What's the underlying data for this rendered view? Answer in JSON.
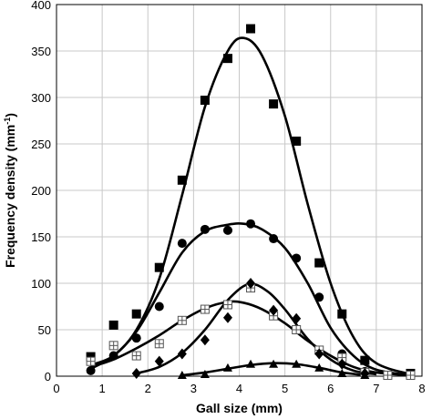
{
  "chart_data": {
    "type": "scatter",
    "xlabel": "Gall size (mm)",
    "ylabel": "Frequency density (mm",
    "ylabel_sup": "-1",
    "ylabel_close": ")",
    "xlim": [
      0,
      8
    ],
    "ylim": [
      0,
      400
    ],
    "x_ticks": [
      0,
      1,
      2,
      3,
      4,
      5,
      6,
      7,
      8
    ],
    "y_ticks": [
      0,
      50,
      100,
      150,
      200,
      250,
      300,
      350,
      400
    ],
    "grid": true,
    "legend": "none",
    "series": [
      {
        "marker": "square-filled",
        "points": [
          [
            0.75,
            21
          ],
          [
            1.25,
            55
          ],
          [
            1.75,
            67
          ],
          [
            2.25,
            117
          ],
          [
            2.75,
            211
          ],
          [
            3.25,
            297
          ],
          [
            3.75,
            342
          ],
          [
            4.25,
            374
          ],
          [
            4.75,
            293
          ],
          [
            5.25,
            253
          ],
          [
            5.75,
            122
          ],
          [
            6.25,
            67
          ],
          [
            6.75,
            17
          ],
          [
            7.75,
            3
          ]
        ],
        "fit": [
          [
            0.75,
            12
          ],
          [
            1.25,
            22
          ],
          [
            1.75,
            50
          ],
          [
            2.25,
            105
          ],
          [
            2.75,
            195
          ],
          [
            3.25,
            290
          ],
          [
            3.75,
            350
          ],
          [
            4.1,
            364
          ],
          [
            4.5,
            345
          ],
          [
            5.0,
            280
          ],
          [
            5.5,
            185
          ],
          [
            6.0,
            100
          ],
          [
            6.5,
            42
          ],
          [
            7.0,
            14
          ],
          [
            7.75,
            2
          ]
        ]
      },
      {
        "marker": "circle-filled",
        "points": [
          [
            0.75,
            6
          ],
          [
            1.25,
            22
          ],
          [
            1.75,
            41
          ],
          [
            2.25,
            75
          ],
          [
            2.75,
            143
          ],
          [
            3.25,
            158
          ],
          [
            3.75,
            157
          ],
          [
            4.25,
            164
          ],
          [
            4.75,
            148
          ],
          [
            5.25,
            127
          ],
          [
            5.75,
            85
          ],
          [
            6.25,
            24
          ],
          [
            6.75,
            5
          ],
          [
            7.75,
            1
          ]
        ],
        "fit": [
          [
            0.75,
            8
          ],
          [
            1.25,
            22
          ],
          [
            1.75,
            48
          ],
          [
            2.25,
            90
          ],
          [
            2.75,
            133
          ],
          [
            3.25,
            156
          ],
          [
            3.75,
            163
          ],
          [
            4.1,
            164
          ],
          [
            4.5,
            158
          ],
          [
            5.0,
            138
          ],
          [
            5.5,
            100
          ],
          [
            6.0,
            52
          ],
          [
            6.5,
            22
          ],
          [
            7.0,
            7
          ],
          [
            7.75,
            1
          ]
        ]
      },
      {
        "marker": "square-open-cross",
        "points": [
          [
            0.75,
            16
          ],
          [
            1.25,
            33
          ],
          [
            1.75,
            22
          ],
          [
            2.25,
            35
          ],
          [
            2.75,
            60
          ],
          [
            3.25,
            72
          ],
          [
            3.75,
            77
          ],
          [
            4.25,
            95
          ],
          [
            4.75,
            65
          ],
          [
            5.25,
            50
          ],
          [
            5.75,
            28
          ],
          [
            6.25,
            20
          ],
          [
            6.75,
            4
          ],
          [
            7.25,
            1
          ],
          [
            7.75,
            1
          ]
        ],
        "fit": [
          [
            0.75,
            10
          ],
          [
            1.25,
            18
          ],
          [
            1.75,
            30
          ],
          [
            2.25,
            44
          ],
          [
            2.75,
            60
          ],
          [
            3.25,
            73
          ],
          [
            3.75,
            80
          ],
          [
            4.1,
            79
          ],
          [
            4.5,
            72
          ],
          [
            5.0,
            57
          ],
          [
            5.5,
            38
          ],
          [
            6.0,
            22
          ],
          [
            6.5,
            10
          ],
          [
            7.0,
            4
          ],
          [
            7.75,
            1
          ]
        ]
      },
      {
        "marker": "diamond-filled",
        "points": [
          [
            1.75,
            3
          ],
          [
            2.25,
            16
          ],
          [
            2.75,
            24
          ],
          [
            3.25,
            39
          ],
          [
            3.75,
            63
          ],
          [
            4.25,
            100
          ],
          [
            4.75,
            71
          ],
          [
            5.25,
            62
          ],
          [
            5.75,
            24
          ],
          [
            6.25,
            13
          ],
          [
            6.75,
            3
          ]
        ],
        "fit": [
          [
            1.75,
            3
          ],
          [
            2.25,
            10
          ],
          [
            2.75,
            25
          ],
          [
            3.25,
            50
          ],
          [
            3.75,
            82
          ],
          [
            4.2,
            99
          ],
          [
            4.6,
            92
          ],
          [
            5.0,
            72
          ],
          [
            5.5,
            40
          ],
          [
            6.0,
            18
          ],
          [
            6.5,
            6
          ],
          [
            7.0,
            2
          ]
        ]
      },
      {
        "marker": "triangle-filled",
        "points": [
          [
            2.75,
            1
          ],
          [
            3.25,
            2
          ],
          [
            3.75,
            9
          ],
          [
            4.25,
            13
          ],
          [
            4.75,
            13
          ],
          [
            5.25,
            13
          ],
          [
            5.75,
            9
          ],
          [
            6.25,
            3
          ],
          [
            6.75,
            1
          ]
        ],
        "fit": [
          [
            2.75,
            1
          ],
          [
            3.25,
            4
          ],
          [
            3.75,
            8
          ],
          [
            4.25,
            12
          ],
          [
            4.75,
            14
          ],
          [
            5.25,
            13
          ],
          [
            5.75,
            9
          ],
          [
            6.25,
            4
          ],
          [
            6.75,
            1
          ]
        ]
      }
    ]
  }
}
